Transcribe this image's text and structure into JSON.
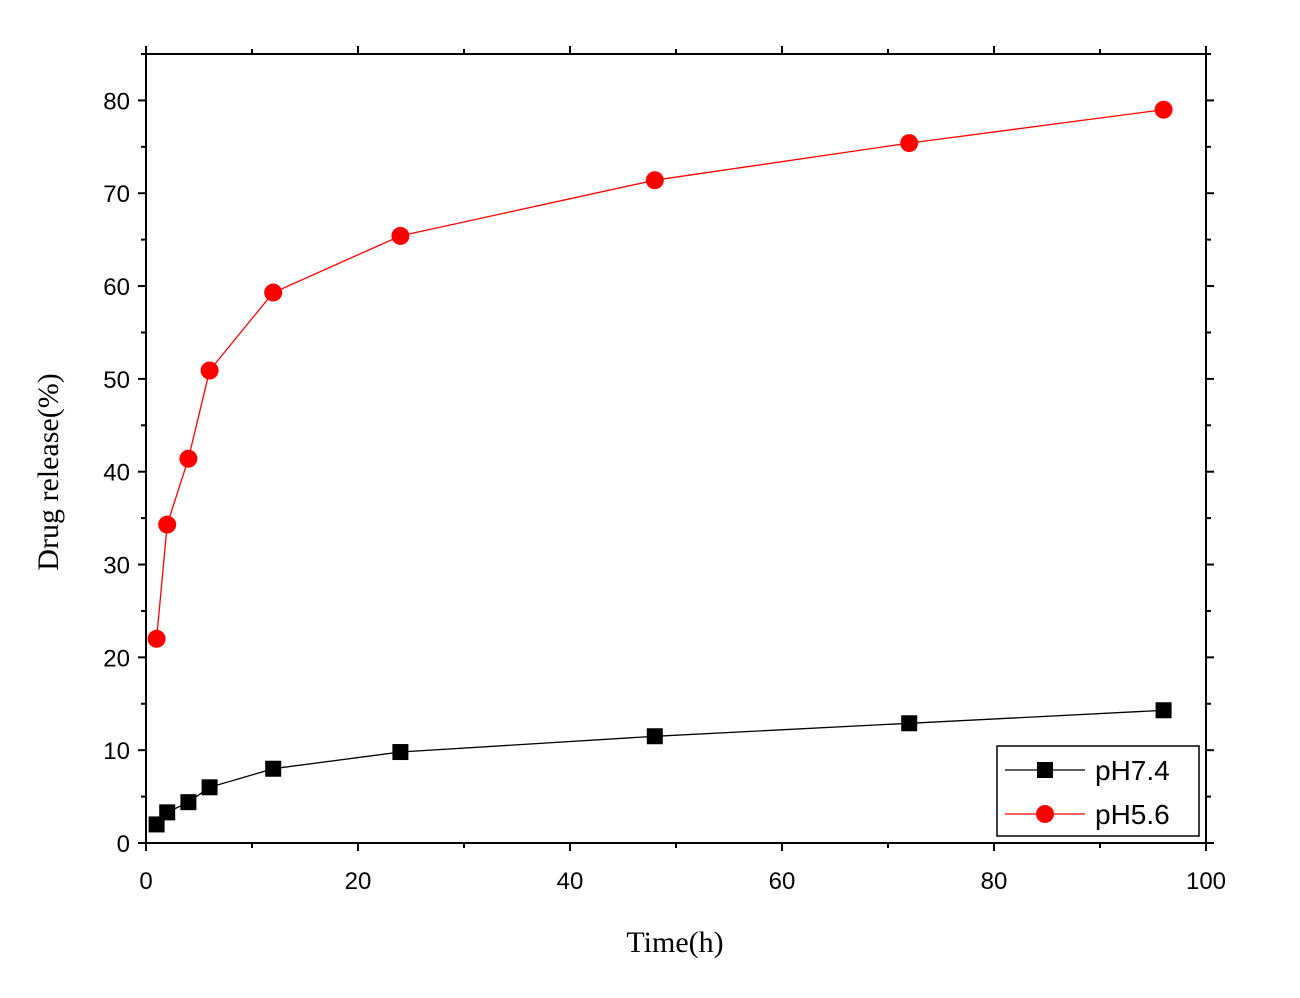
{
  "chart_data": {
    "type": "line",
    "xlabel": "Time(h)",
    "ylabel": "Drug release(%)",
    "xlim": [
      0,
      100
    ],
    "ylim": [
      0,
      85
    ],
    "x_ticks": [
      0,
      20,
      40,
      60,
      80,
      100
    ],
    "y_ticks": [
      0,
      10,
      20,
      30,
      40,
      50,
      60,
      70,
      80
    ],
    "grid": false,
    "legend_position": "bottom-right",
    "series": [
      {
        "name": "pH7.4",
        "color": "#000000",
        "marker": "square",
        "x": [
          1,
          2,
          4,
          6,
          12,
          24,
          48,
          72,
          96
        ],
        "y": [
          2.0,
          3.3,
          4.4,
          6.0,
          8.0,
          9.8,
          11.5,
          12.9,
          14.3
        ]
      },
      {
        "name": "pH5.6",
        "color": "#ff0000",
        "marker": "circle",
        "x": [
          1,
          2,
          4,
          6,
          12,
          24,
          48,
          72,
          96
        ],
        "y": [
          22.0,
          34.3,
          41.4,
          50.9,
          59.3,
          65.4,
          71.4,
          75.4,
          79.0
        ]
      }
    ]
  }
}
